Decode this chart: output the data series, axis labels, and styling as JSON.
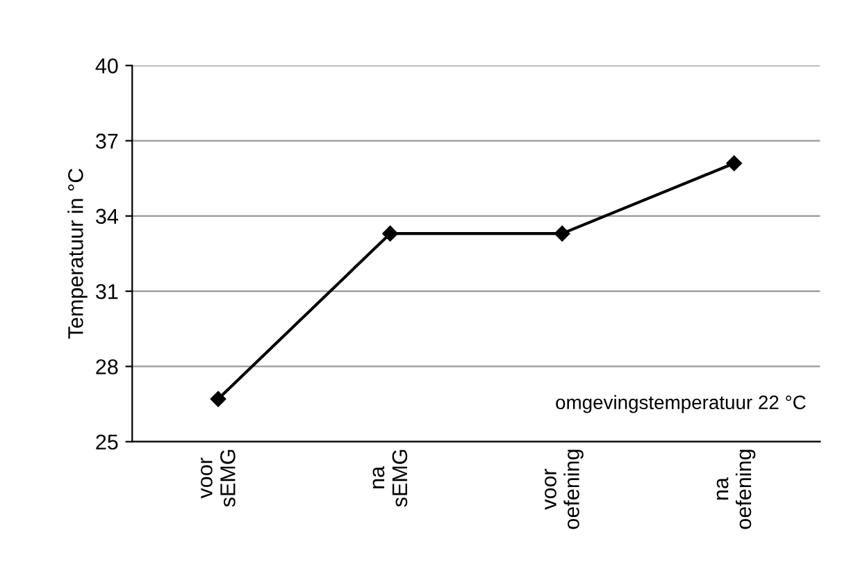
{
  "chart_data": {
    "type": "line",
    "ylabel": "Temperatuur in °C",
    "categories": [
      "voor\nsEMG",
      "na\nsEMG",
      "voor\noefening",
      "na\noefening"
    ],
    "series": [
      {
        "color": "#000000",
        "values": [
          26.7,
          33.3,
          33.3,
          36.1
        ]
      }
    ],
    "ylim": [
      25,
      40
    ],
    "yticks": [
      25,
      28,
      31,
      34,
      37,
      40
    ],
    "grid": "y",
    "marker": "diamond",
    "line_style": "solid",
    "annotations": [
      "omgevingstemperatuur 22 °C"
    ]
  }
}
